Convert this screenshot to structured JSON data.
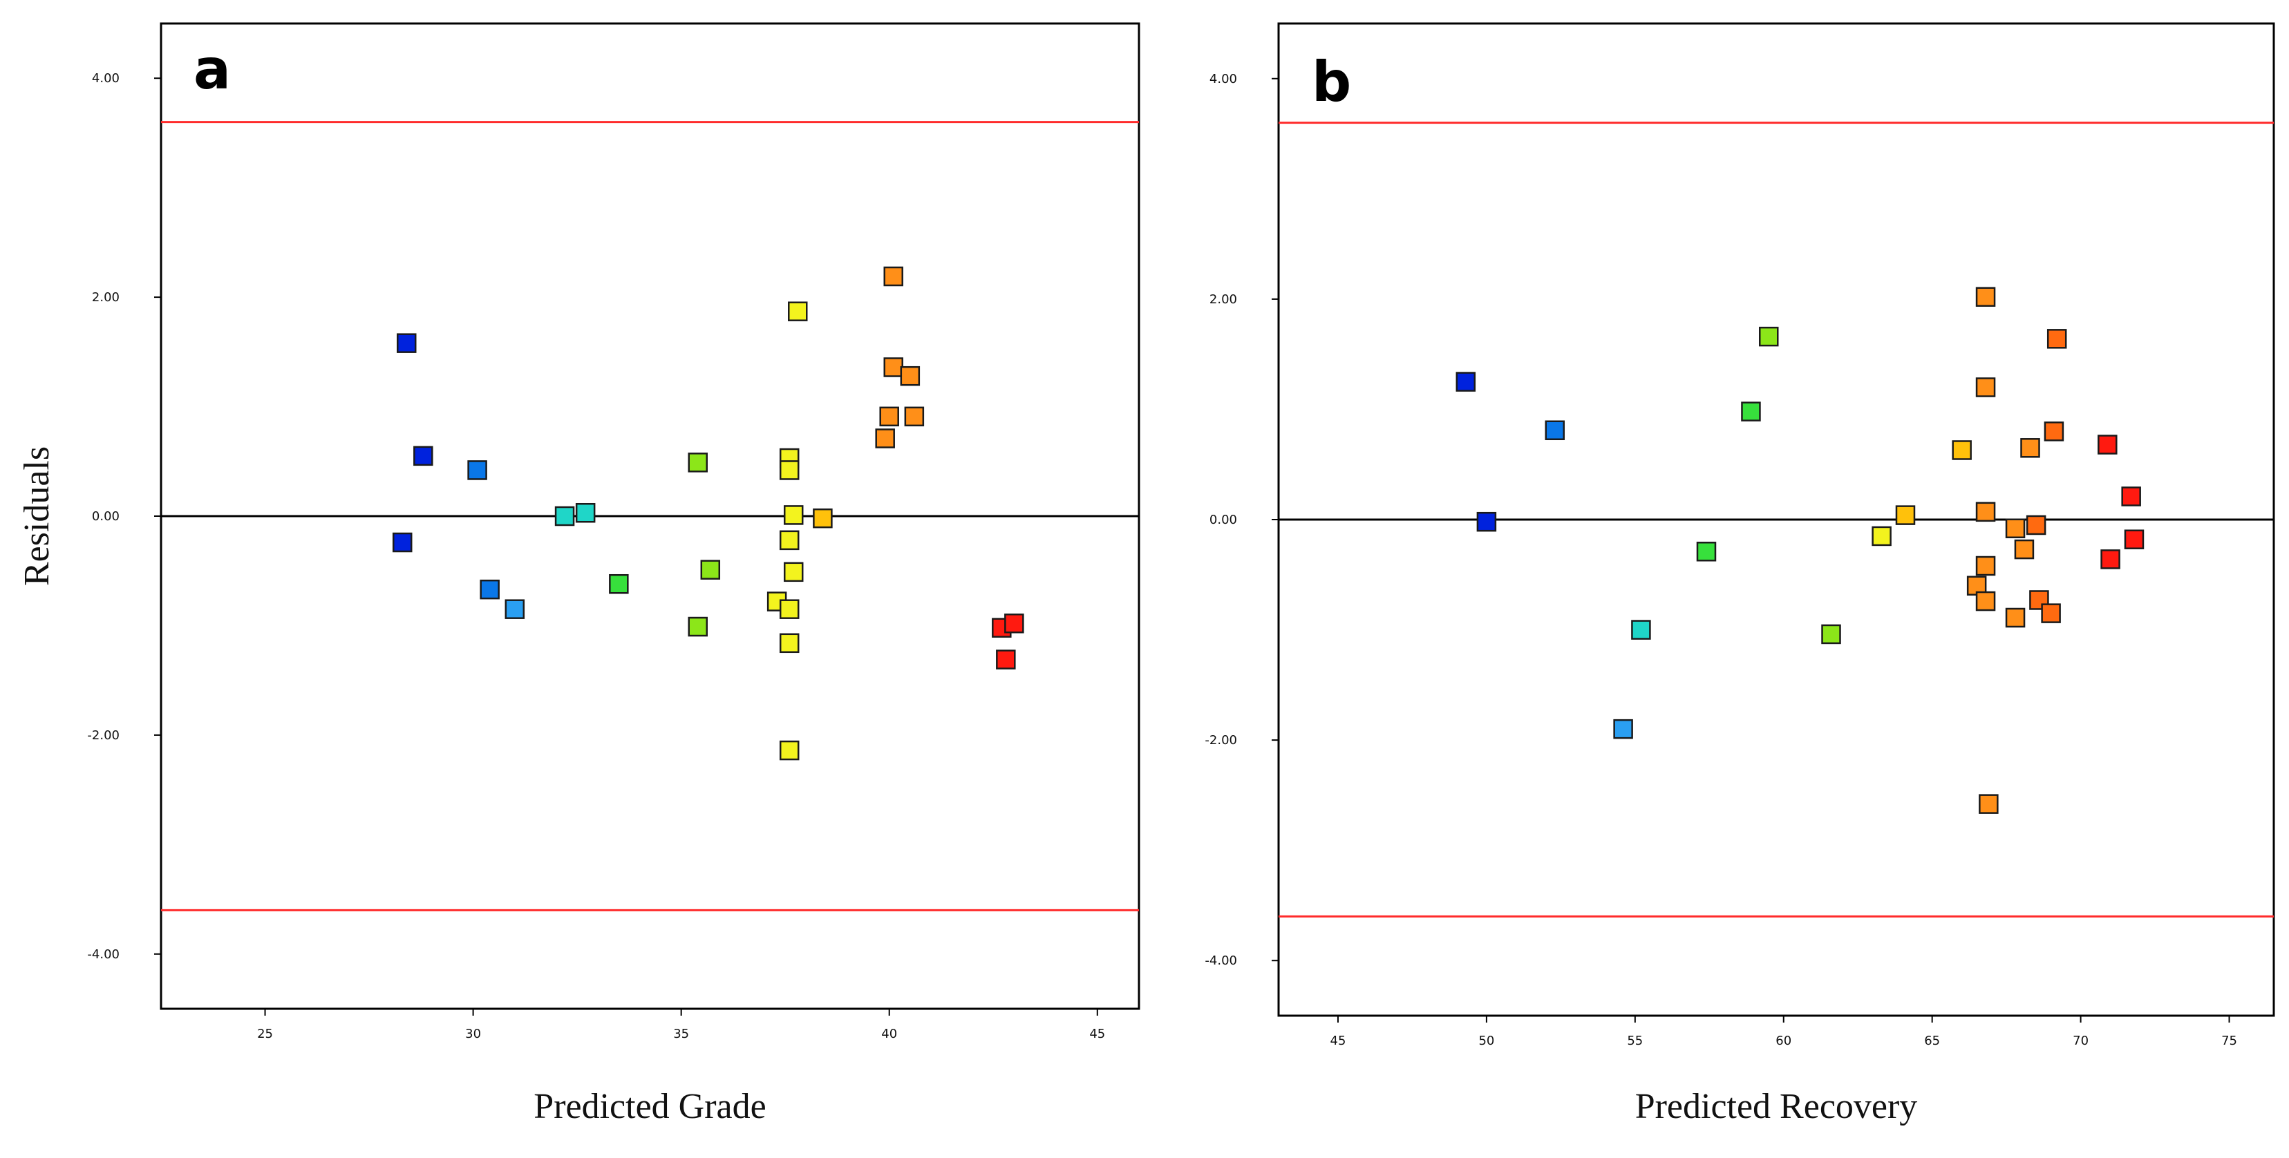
{
  "chart_data": [
    {
      "type": "scatter",
      "panel_label": "a",
      "title": "",
      "xlabel": "Predicted Grade",
      "ylabel": "Residuals",
      "xlim": [
        22.5,
        46.0
      ],
      "ylim": [
        -4.5,
        4.5
      ],
      "xticks": [
        25,
        30,
        35,
        40,
        45
      ],
      "xtick_labels": [
        "25",
        "30",
        "35",
        "40",
        "45"
      ],
      "yticks": [
        -4,
        -2,
        0,
        2,
        4
      ],
      "ytick_labels": [
        "-4.00",
        "-2.00",
        "0.00",
        "2.00",
        "4.00"
      ],
      "reference_lines": [
        {
          "y": 3.6,
          "color": "#ff2b2b"
        },
        {
          "y": 0,
          "color": "#000000"
        },
        {
          "y": -3.6,
          "color": "#ff2b2b"
        }
      ],
      "colormap": [
        "#0022dd",
        "#0a77e8",
        "#2a9ff2",
        "#1fd6c8",
        "#37e03c",
        "#8ce619",
        "#f3f31e",
        "#ffc10b",
        "#ff8f18",
        "#ff6a10",
        "#ff1a10"
      ],
      "points": [
        {
          "x": 28.4,
          "y": 1.58
        },
        {
          "x": 28.8,
          "y": 0.55
        },
        {
          "x": 28.3,
          "y": -0.24
        },
        {
          "x": 30.1,
          "y": 0.42
        },
        {
          "x": 30.4,
          "y": -0.67
        },
        {
          "x": 31.0,
          "y": -0.85
        },
        {
          "x": 32.2,
          "y": 0.0
        },
        {
          "x": 32.7,
          "y": 0.03
        },
        {
          "x": 33.5,
          "y": -0.62
        },
        {
          "x": 35.4,
          "y": 0.49
        },
        {
          "x": 35.7,
          "y": -0.49
        },
        {
          "x": 35.4,
          "y": -1.01
        },
        {
          "x": 37.6,
          "y": 0.53
        },
        {
          "x": 37.6,
          "y": 0.42
        },
        {
          "x": 37.7,
          "y": 0.01
        },
        {
          "x": 37.6,
          "y": -0.22
        },
        {
          "x": 37.7,
          "y": -0.51
        },
        {
          "x": 37.3,
          "y": -0.78
        },
        {
          "x": 37.6,
          "y": -0.85
        },
        {
          "x": 37.6,
          "y": -1.16
        },
        {
          "x": 37.6,
          "y": -2.14
        },
        {
          "x": 37.8,
          "y": 1.87
        },
        {
          "x": 38.4,
          "y": -0.02
        },
        {
          "x": 39.9,
          "y": 0.71
        },
        {
          "x": 40.0,
          "y": 0.91
        },
        {
          "x": 40.6,
          "y": 0.91
        },
        {
          "x": 40.1,
          "y": 1.36
        },
        {
          "x": 40.5,
          "y": 1.28
        },
        {
          "x": 40.1,
          "y": 2.19
        },
        {
          "x": 42.7,
          "y": -1.02
        },
        {
          "x": 43.0,
          "y": -0.98
        },
        {
          "x": 42.8,
          "y": -1.31
        }
      ]
    },
    {
      "type": "scatter",
      "panel_label": "b",
      "title": "",
      "xlabel": "Predicted Recovery",
      "ylabel": "",
      "xlim": [
        43.0,
        76.5
      ],
      "ylim": [
        -4.5,
        4.5
      ],
      "xticks": [
        45,
        50,
        55,
        60,
        65,
        70,
        75
      ],
      "xtick_labels": [
        "45",
        "50",
        "55",
        "60",
        "65",
        "70",
        "75"
      ],
      "yticks": [
        -4,
        -2,
        0,
        2,
        4
      ],
      "ytick_labels": [
        "-4.00",
        "-2.00",
        "0.00",
        "2.00",
        "4.00"
      ],
      "reference_lines": [
        {
          "y": 3.6,
          "color": "#ff2b2b"
        },
        {
          "y": 0,
          "color": "#000000"
        },
        {
          "y": -3.6,
          "color": "#ff2b2b"
        }
      ],
      "colormap": [
        "#0022dd",
        "#0a77e8",
        "#2a9ff2",
        "#1fd6c8",
        "#37e03c",
        "#8ce619",
        "#f3f31e",
        "#ffc10b",
        "#ff8f18",
        "#ff6a10",
        "#ff1a10"
      ],
      "points": [
        {
          "x": 49.3,
          "y": 1.25
        },
        {
          "x": 50.0,
          "y": -0.02
        },
        {
          "x": 52.3,
          "y": 0.81
        },
        {
          "x": 54.6,
          "y": -1.9
        },
        {
          "x": 55.2,
          "y": -1.0
        },
        {
          "x": 57.4,
          "y": -0.29
        },
        {
          "x": 58.9,
          "y": 0.98
        },
        {
          "x": 59.5,
          "y": 1.66
        },
        {
          "x": 61.6,
          "y": -1.04
        },
        {
          "x": 63.3,
          "y": -0.15
        },
        {
          "x": 64.1,
          "y": 0.04
        },
        {
          "x": 66.9,
          "y": -2.58
        },
        {
          "x": 66.0,
          "y": 0.63
        },
        {
          "x": 66.8,
          "y": 0.07
        },
        {
          "x": 66.8,
          "y": -0.42
        },
        {
          "x": 66.5,
          "y": -0.6
        },
        {
          "x": 66.8,
          "y": -0.74
        },
        {
          "x": 66.8,
          "y": 1.2
        },
        {
          "x": 66.8,
          "y": 2.02
        },
        {
          "x": 67.8,
          "y": -0.08
        },
        {
          "x": 67.8,
          "y": -0.89
        },
        {
          "x": 68.1,
          "y": -0.27
        },
        {
          "x": 68.5,
          "y": -0.05
        },
        {
          "x": 68.6,
          "y": -0.73
        },
        {
          "x": 69.0,
          "y": -0.85
        },
        {
          "x": 68.3,
          "y": 0.65
        },
        {
          "x": 69.1,
          "y": 0.8
        },
        {
          "x": 69.2,
          "y": 1.64
        },
        {
          "x": 70.9,
          "y": 0.68
        },
        {
          "x": 71.0,
          "y": -0.36
        },
        {
          "x": 71.7,
          "y": 0.21
        },
        {
          "x": 71.8,
          "y": -0.18
        }
      ]
    }
  ]
}
